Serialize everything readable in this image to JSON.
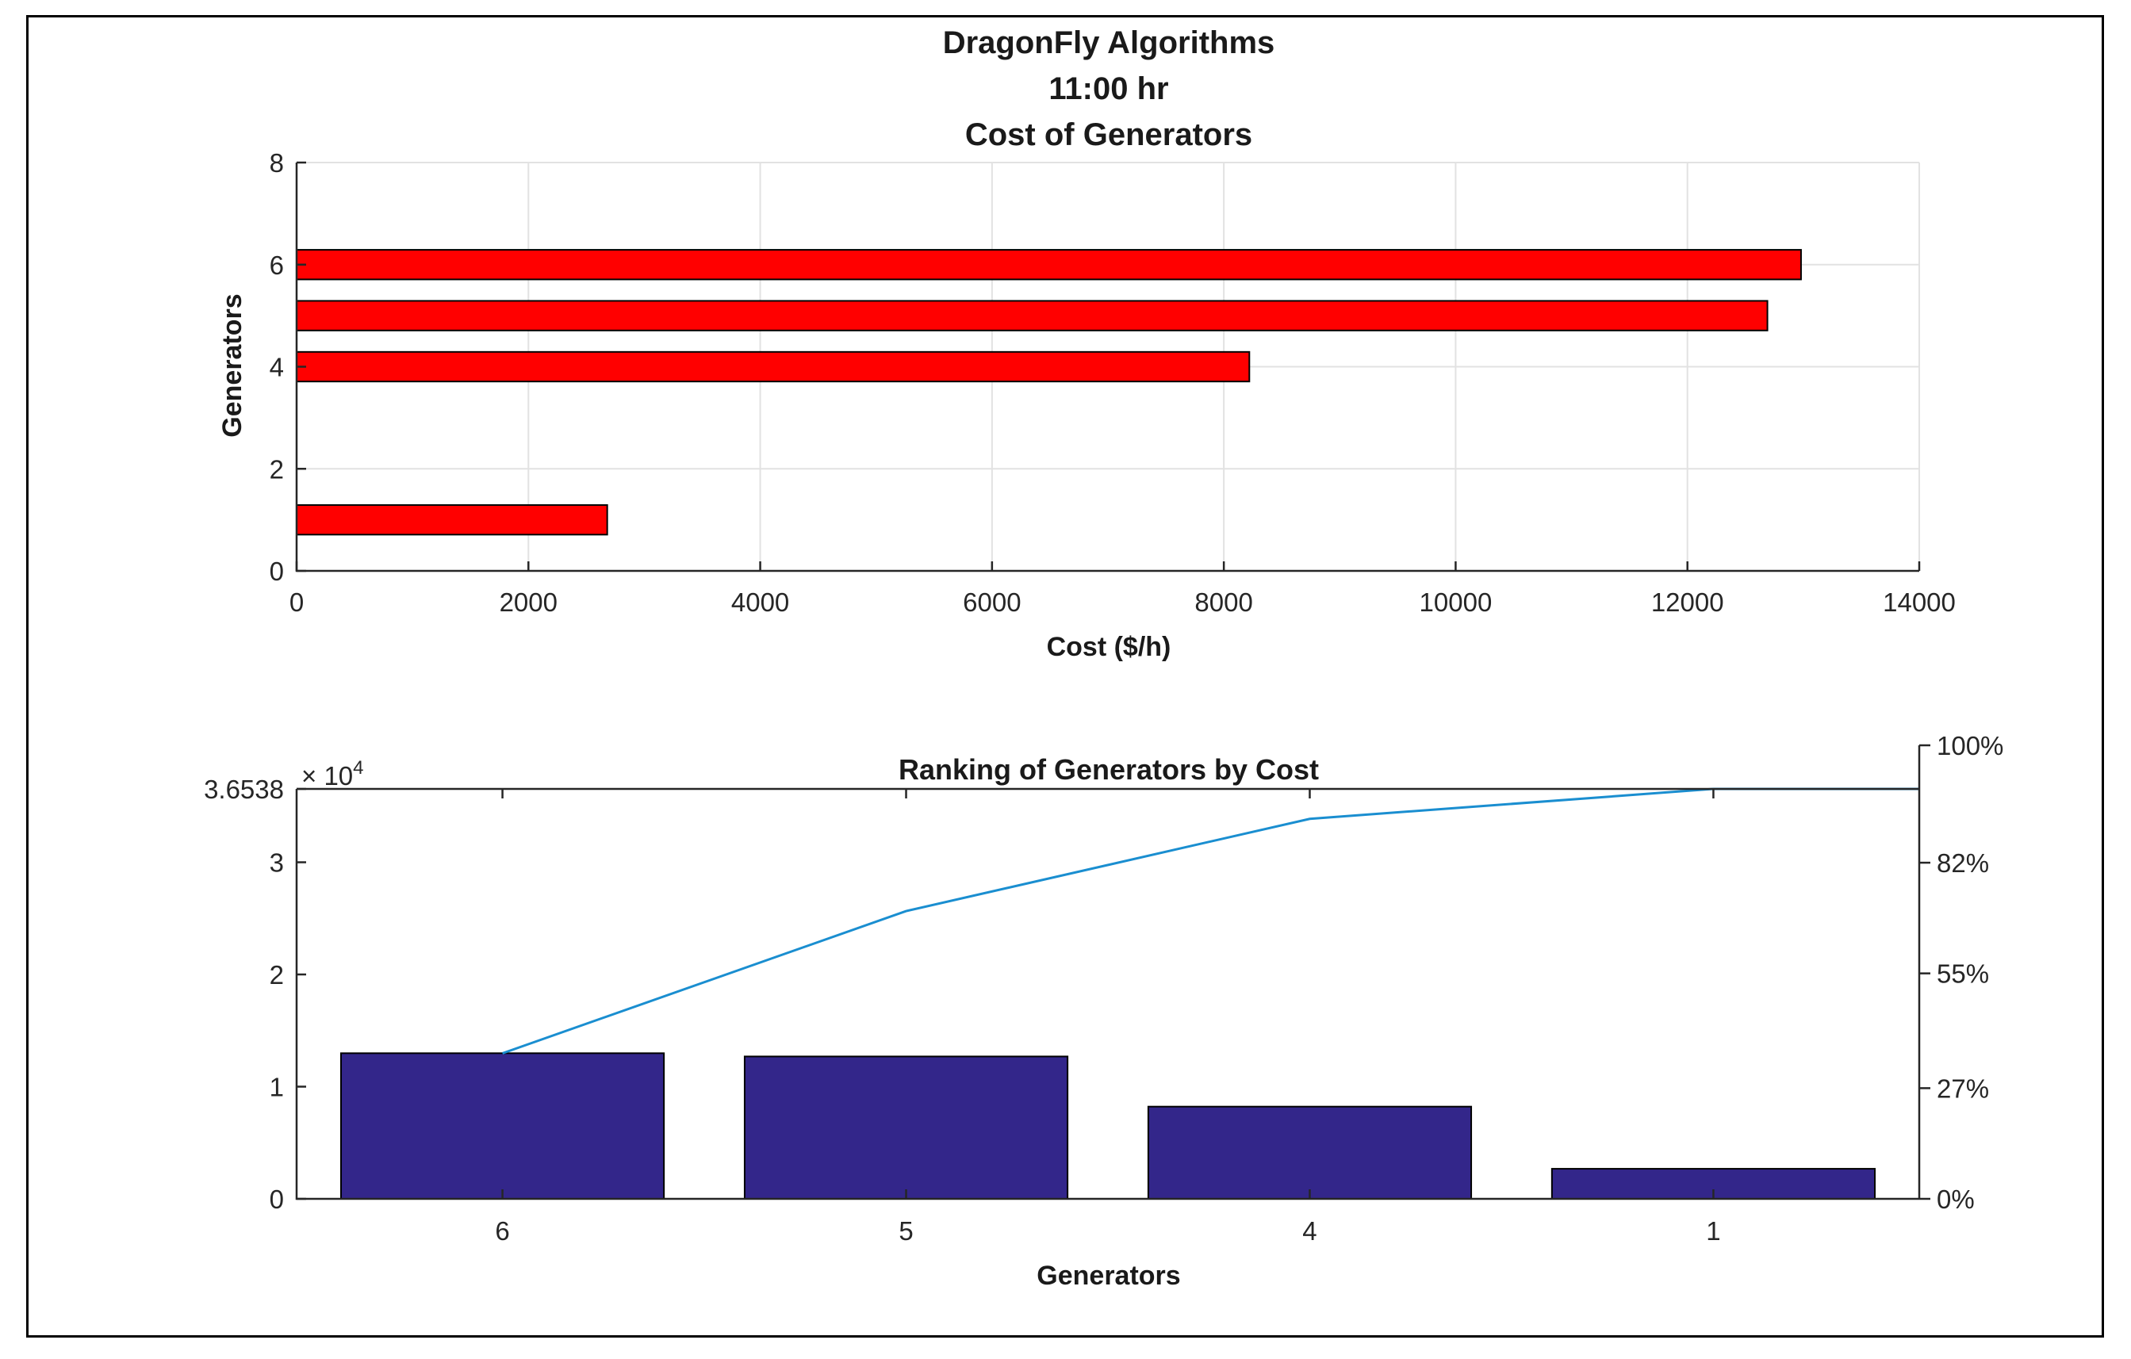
{
  "colors": {
    "barh_fill": "#ff0000",
    "pareto_bar_fill": "#33268a",
    "pareto_line": "#1a8ed0",
    "axis": "#262626",
    "grid": "#e2e2e2"
  },
  "chart_data": [
    {
      "type": "bar",
      "orientation": "horizontal",
      "title_lines": [
        "DragonFly Algorithms",
        "11:00 hr",
        "Cost of Generators"
      ],
      "xlabel": "Cost ($/h)",
      "ylabel": "Generators",
      "xlim": [
        0,
        14000
      ],
      "ylim": [
        0,
        8
      ],
      "xticks": [
        "0",
        "2000",
        "4000",
        "6000",
        "8000",
        "10000",
        "12000",
        "14000"
      ],
      "yticks": [
        "0",
        "2",
        "4",
        "6",
        "8"
      ],
      "grid": true,
      "categories": [
        1,
        2,
        3,
        4,
        5,
        6
      ],
      "values": [
        2680,
        0,
        0,
        8220,
        12690,
        12980
      ]
    },
    {
      "type": "bar",
      "subtype": "pareto",
      "title": "Ranking of Generators by Cost",
      "xlabel": "Generators",
      "ylabel": "",
      "categories": [
        "6",
        "5",
        "4",
        "1"
      ],
      "values": [
        12980,
        12690,
        8220,
        2680
      ],
      "cumulative_percent": [
        35.5,
        70.2,
        92.7,
        100
      ],
      "ylim": [
        0,
        36538
      ],
      "yticks": [
        "0",
        "1",
        "2",
        "3",
        "3.6538"
      ],
      "y_exponent_label": "× 10",
      "y_exponent_power": "4",
      "y2ticks": [
        "0%",
        "27%",
        "55%",
        "82%",
        "100%"
      ],
      "grid": false
    }
  ]
}
